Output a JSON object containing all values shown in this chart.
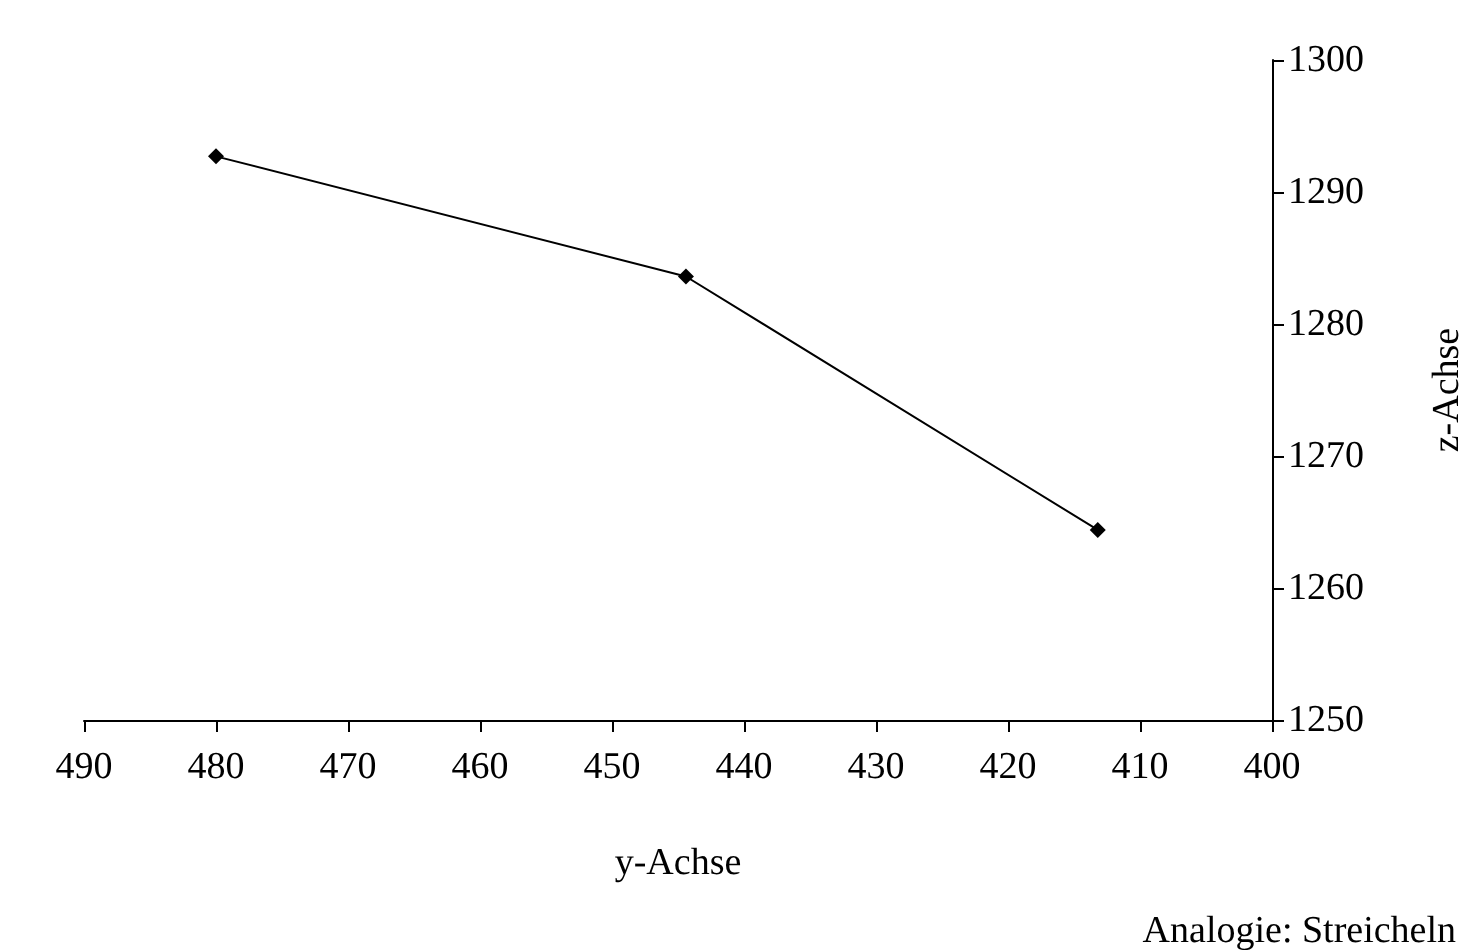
{
  "chart_data": {
    "type": "line",
    "xlabel": "y-Achse",
    "ylabel": "z-Achse",
    "annotations": [
      "Analogie: Streicheln"
    ],
    "x": [
      480,
      444.4,
      413.2
    ],
    "series": [
      {
        "color": "#000000",
        "values": [
          1292.7,
          1283.6,
          1264.4
        ]
      }
    ],
    "xlim": [
      490,
      400
    ],
    "xticks": [
      490,
      480,
      470,
      460,
      450,
      440,
      430,
      420,
      410,
      400
    ],
    "ylim": [
      1250,
      1300
    ],
    "yticks": [
      1250,
      1260,
      1270,
      1280,
      1290,
      1300
    ],
    "grid": false,
    "marker": "diamond",
    "line_style": "solid"
  }
}
